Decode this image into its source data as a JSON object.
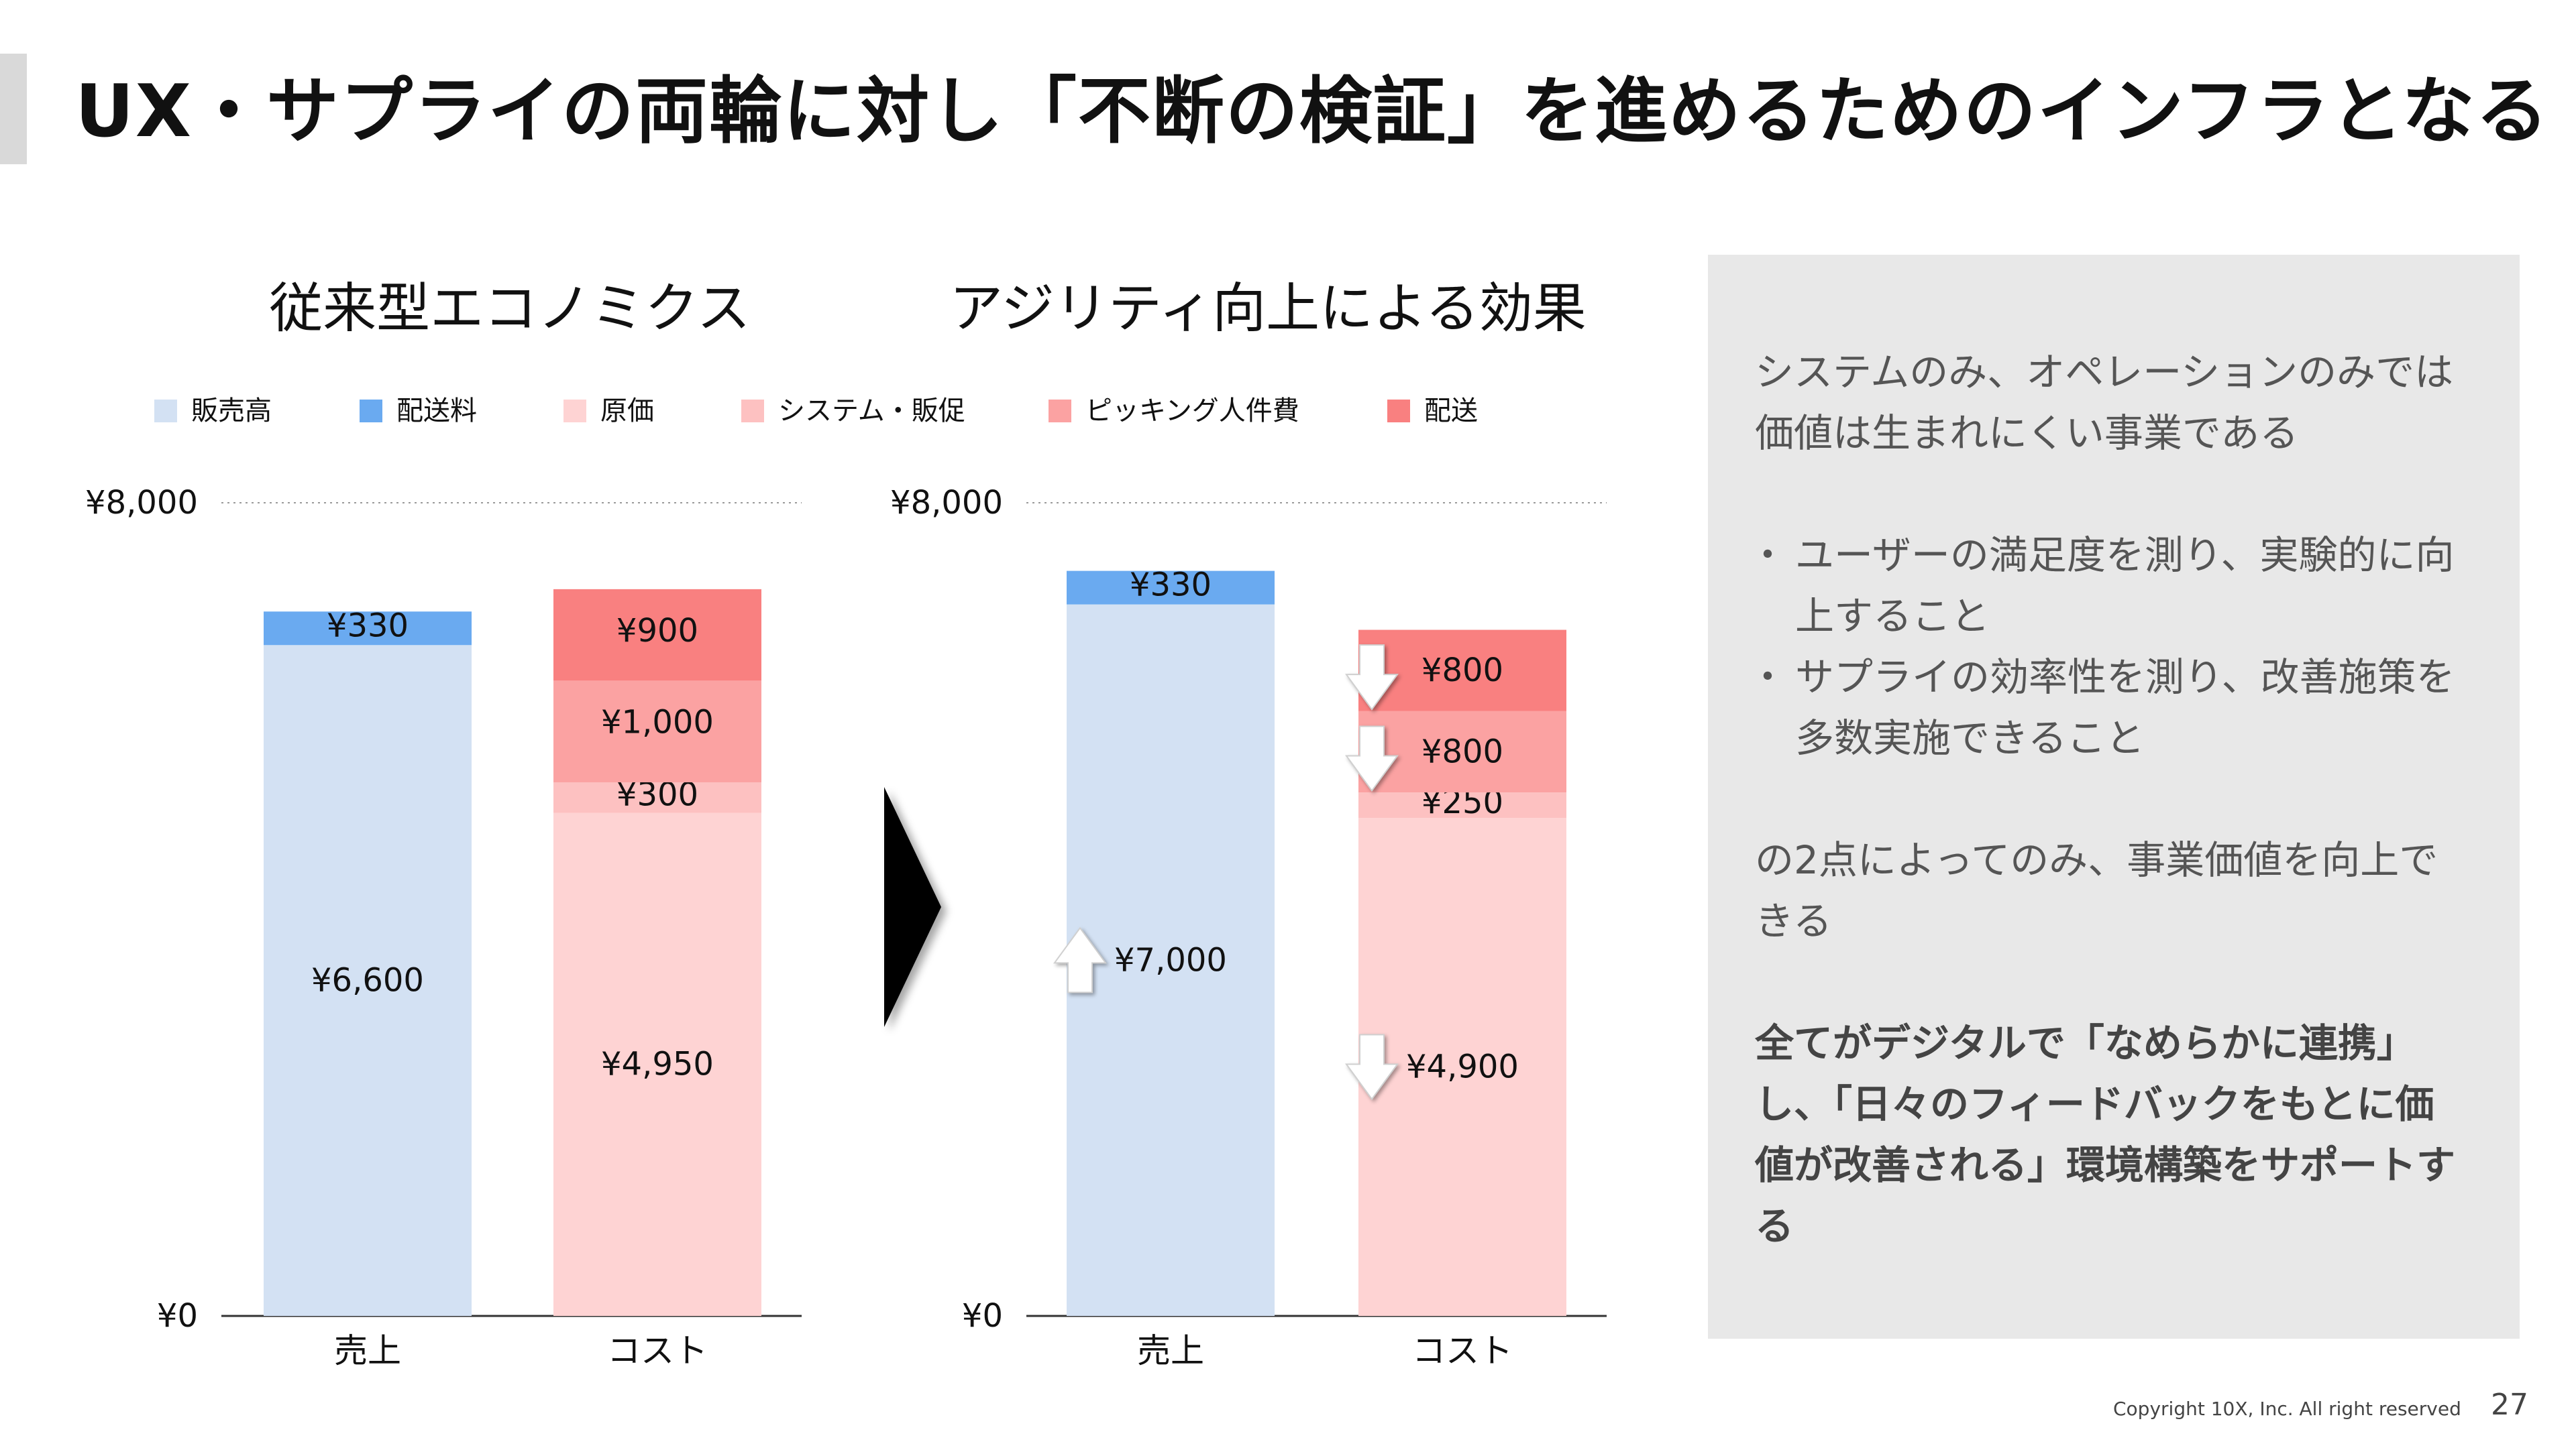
{
  "page": {
    "title": "UX・サプライの両輪に対し「不断の検証」を進めるためのインフラとなる",
    "copyright": "Copyright 10X, Inc. All right reserved",
    "page_number": "27"
  },
  "legend": [
    {
      "label": "販売高",
      "color": "#d3e1f3"
    },
    {
      "label": "配送料",
      "color": "#6aaaf0"
    },
    {
      "label": "原価",
      "color": "#fed3d3"
    },
    {
      "label": "システム・販促",
      "color": "#fdc1c1"
    },
    {
      "label": "ピッキング人件費",
      "color": "#fba2a2"
    },
    {
      "label": "配送",
      "color": "#f98080"
    }
  ],
  "chart_data": [
    {
      "type": "bar",
      "stacked": true,
      "title": "従来型エコノミクス",
      "categories": [
        "売上",
        "コスト"
      ],
      "ylim": [
        0,
        8000
      ],
      "ytick_labels": [
        "¥0",
        "¥8,000"
      ],
      "series": [
        {
          "name": "販売高",
          "values": [
            6600,
            null
          ],
          "labels": [
            "¥6,600",
            ""
          ]
        },
        {
          "name": "配送料",
          "values": [
            330,
            null
          ],
          "labels": [
            "¥330",
            ""
          ]
        },
        {
          "name": "原価",
          "values": [
            null,
            4950
          ],
          "labels": [
            "",
            "¥4,950"
          ]
        },
        {
          "name": "システム・販促",
          "values": [
            null,
            300
          ],
          "labels": [
            "",
            "¥300"
          ]
        },
        {
          "name": "ピッキング人件費",
          "values": [
            null,
            1000
          ],
          "labels": [
            "",
            "¥1,000"
          ]
        },
        {
          "name": "配送",
          "values": [
            null,
            900
          ],
          "labels": [
            "",
            "¥900"
          ]
        }
      ],
      "arrows": []
    },
    {
      "type": "bar",
      "stacked": true,
      "title": "アジリティ向上による効果",
      "categories": [
        "売上",
        "コスト"
      ],
      "ylim": [
        0,
        8000
      ],
      "ytick_labels": [
        "¥0",
        "¥8,000"
      ],
      "series": [
        {
          "name": "販売高",
          "values": [
            7000,
            null
          ],
          "labels": [
            "¥7,000",
            ""
          ]
        },
        {
          "name": "配送料",
          "values": [
            330,
            null
          ],
          "labels": [
            "¥330",
            ""
          ]
        },
        {
          "name": "原価",
          "values": [
            null,
            4900
          ],
          "labels": [
            "",
            "¥4,900"
          ]
        },
        {
          "name": "システム・販促",
          "values": [
            null,
            250
          ],
          "labels": [
            "",
            "¥250"
          ]
        },
        {
          "name": "ピッキング人件費",
          "values": [
            null,
            800
          ],
          "labels": [
            "",
            "¥800"
          ]
        },
        {
          "name": "配送",
          "values": [
            null,
            800
          ],
          "labels": [
            "",
            "¥800"
          ]
        }
      ],
      "arrows": [
        {
          "category": 0,
          "series": "販売高",
          "direction": "up"
        },
        {
          "category": 1,
          "series": "配送",
          "direction": "down"
        },
        {
          "category": 1,
          "series": "ピッキング人件費",
          "direction": "down"
        },
        {
          "category": 1,
          "series": "原価",
          "direction": "down"
        }
      ]
    }
  ],
  "panel": {
    "intro": "システムのみ、オペレーションのみでは価値は生まれにくい事業である",
    "bullets": [
      "ユーザーの満足度を測り、実験的に向上すること",
      "サプライの効率性を測り、改善施策を多数実施できること"
    ],
    "middle": "の2点によってのみ、事業価値を向上できる",
    "conclusion": "全てがデジタルで「なめらかに連携」し、「日々のフィードバックをもとに価値が改善される」環境構築をサポートする"
  }
}
